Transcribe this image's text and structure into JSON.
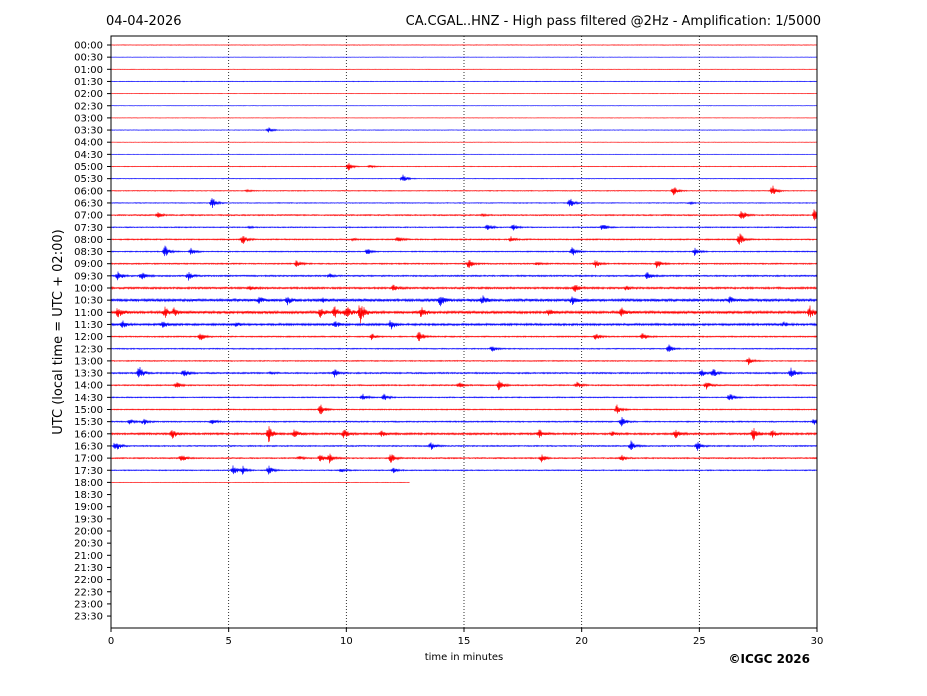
{
  "header": {
    "date": "04-04-2026",
    "title": "CA.CGAL..HNZ - High pass filtered @2Hz - Amplification: 1/5000"
  },
  "copyright": "©ICGC 2026",
  "colors": {
    "red": "#ff0000",
    "blue": "#0000ff",
    "grid": "#000000",
    "background": "#ffffff"
  },
  "chart_data": {
    "type": "line",
    "title": "CA.CGAL..HNZ - High pass filtered @2Hz - Amplification: 1/5000",
    "xlabel": "time in minutes",
    "ylabel": "UTC (local time = UTC + 02:00)",
    "xlim": [
      0,
      30
    ],
    "x_ticks": [
      "0",
      "5",
      "10",
      "15",
      "20",
      "25",
      "30"
    ],
    "y_ticks": [
      "00:00",
      "00:30",
      "01:00",
      "01:30",
      "02:00",
      "02:30",
      "03:00",
      "03:30",
      "04:00",
      "04:30",
      "05:00",
      "05:30",
      "06:00",
      "06:30",
      "07:00",
      "07:30",
      "08:00",
      "08:30",
      "09:00",
      "09:30",
      "10:00",
      "10:30",
      "11:00",
      "11:30",
      "12:00",
      "12:30",
      "13:00",
      "13:30",
      "14:00",
      "14:30",
      "15:00",
      "15:30",
      "16:00",
      "16:30",
      "17:00",
      "17:30",
      "18:00",
      "18:30",
      "19:00",
      "19:30",
      "20:00",
      "20:30",
      "21:00",
      "21:30",
      "22:00",
      "22:30",
      "23:00",
      "23:30"
    ],
    "vertical_gridlines_at": [
      5,
      10,
      15,
      20,
      25
    ],
    "trace_colors_alternate": [
      "red",
      "blue"
    ],
    "last_trace_end_minutes": 12.7,
    "noise_level": {
      "00:00": 0.3,
      "00:30": 0.2,
      "01:00": 0.2,
      "01:30": 0.3,
      "02:00": 0.2,
      "02:30": 0.2,
      "03:00": 0.2,
      "03:30": 0.3,
      "04:00": 0.2,
      "04:30": 0.2,
      "05:00": 0.3,
      "05:30": 0.3,
      "06:00": 0.4,
      "06:30": 0.4,
      "07:00": 0.6,
      "07:30": 0.5,
      "08:00": 0.6,
      "08:30": 0.5,
      "09:00": 0.6,
      "09:30": 0.7,
      "10:00": 0.9,
      "10:30": 1.2,
      "11:00": 1.2,
      "11:30": 1.0,
      "12:00": 0.6,
      "12:30": 0.5,
      "13:00": 0.5,
      "13:30": 0.7,
      "14:00": 0.6,
      "14:30": 0.5,
      "15:00": 0.5,
      "15:30": 0.6,
      "16:00": 0.9,
      "16:30": 0.6,
      "17:00": 0.6,
      "17:30": 0.5,
      "18:00": 0.2
    },
    "events": [
      {
        "row": "03:30",
        "t": 6.7,
        "amp": 3
      },
      {
        "row": "05:00",
        "t": 10.1,
        "amp": 4
      },
      {
        "row": "05:00",
        "t": 11,
        "amp": 1.5
      },
      {
        "row": "05:30",
        "t": 12.4,
        "amp": 5
      },
      {
        "row": "06:00",
        "t": 5.8,
        "amp": 1
      },
      {
        "row": "06:00",
        "t": 23.9,
        "amp": 5
      },
      {
        "row": "06:00",
        "t": 28.1,
        "amp": 6
      },
      {
        "row": "06:30",
        "t": 4.3,
        "amp": 6
      },
      {
        "row": "06:30",
        "t": 19.5,
        "amp": 5
      },
      {
        "row": "06:30",
        "t": 24.6,
        "amp": 1
      },
      {
        "row": "07:00",
        "t": 2,
        "amp": 3
      },
      {
        "row": "07:00",
        "t": 15.8,
        "amp": 1
      },
      {
        "row": "07:00",
        "t": 26.8,
        "amp": 6
      },
      {
        "row": "07:00",
        "t": 29.9,
        "amp": 7
      },
      {
        "row": "07:30",
        "t": 5.9,
        "amp": 1
      },
      {
        "row": "07:30",
        "t": 16,
        "amp": 4
      },
      {
        "row": "07:30",
        "t": 17.1,
        "amp": 3
      },
      {
        "row": "07:30",
        "t": 20.9,
        "amp": 4
      },
      {
        "row": "08:00",
        "t": 5.6,
        "amp": 5
      },
      {
        "row": "08:00",
        "t": 10.3,
        "amp": 1
      },
      {
        "row": "08:00",
        "t": 12.2,
        "amp": 3
      },
      {
        "row": "08:00",
        "t": 17,
        "amp": 3
      },
      {
        "row": "08:00",
        "t": 26.7,
        "amp": 7
      },
      {
        "row": "08:30",
        "t": 2.3,
        "amp": 6
      },
      {
        "row": "08:30",
        "t": 3.4,
        "amp": 4
      },
      {
        "row": "08:30",
        "t": 10.9,
        "amp": 3
      },
      {
        "row": "08:30",
        "t": 19.6,
        "amp": 5
      },
      {
        "row": "08:30",
        "t": 24.8,
        "amp": 4
      },
      {
        "row": "09:00",
        "t": 7.9,
        "amp": 4
      },
      {
        "row": "09:00",
        "t": 15.2,
        "amp": 5
      },
      {
        "row": "09:00",
        "t": 18.1,
        "amp": 2
      },
      {
        "row": "09:00",
        "t": 20.6,
        "amp": 4
      },
      {
        "row": "09:00",
        "t": 23.2,
        "amp": 5
      },
      {
        "row": "09:30",
        "t": 0.3,
        "amp": 5
      },
      {
        "row": "09:30",
        "t": 1.3,
        "amp": 4
      },
      {
        "row": "09:30",
        "t": 3.3,
        "amp": 5
      },
      {
        "row": "09:30",
        "t": 9.3,
        "amp": 2
      },
      {
        "row": "09:30",
        "t": 22.8,
        "amp": 4
      },
      {
        "row": "10:00",
        "t": 5.9,
        "amp": 3
      },
      {
        "row": "10:00",
        "t": 12,
        "amp": 3
      },
      {
        "row": "10:00",
        "t": 19.7,
        "amp": 4
      },
      {
        "row": "10:00",
        "t": 21.9,
        "amp": 2
      },
      {
        "row": "10:30",
        "t": 6.3,
        "amp": 3
      },
      {
        "row": "10:30",
        "t": 7.5,
        "amp": 4
      },
      {
        "row": "10:30",
        "t": 9,
        "amp": 2
      },
      {
        "row": "10:30",
        "t": 14,
        "amp": 6
      },
      {
        "row": "10:30",
        "t": 15.8,
        "amp": 4
      },
      {
        "row": "10:30",
        "t": 19.6,
        "amp": 4
      },
      {
        "row": "10:30",
        "t": 26.3,
        "amp": 3
      },
      {
        "row": "11:00",
        "t": 0.3,
        "amp": 5
      },
      {
        "row": "11:00",
        "t": 2.3,
        "amp": 5
      },
      {
        "row": "11:00",
        "t": 2.7,
        "amp": 4
      },
      {
        "row": "11:00",
        "t": 8.9,
        "amp": 5
      },
      {
        "row": "11:00",
        "t": 9.5,
        "amp": 6
      },
      {
        "row": "11:00",
        "t": 10,
        "amp": 7
      },
      {
        "row": "11:00",
        "t": 10.6,
        "amp": 12
      },
      {
        "row": "11:00",
        "t": 13.2,
        "amp": 6
      },
      {
        "row": "11:00",
        "t": 18.6,
        "amp": 3
      },
      {
        "row": "11:00",
        "t": 21.7,
        "amp": 5
      },
      {
        "row": "11:00",
        "t": 29.7,
        "amp": 6
      },
      {
        "row": "11:30",
        "t": 0.5,
        "amp": 4
      },
      {
        "row": "11:30",
        "t": 2.2,
        "amp": 4
      },
      {
        "row": "11:30",
        "t": 5.3,
        "amp": 2
      },
      {
        "row": "11:30",
        "t": 9.5,
        "amp": 4
      },
      {
        "row": "11:30",
        "t": 11.9,
        "amp": 5
      },
      {
        "row": "11:30",
        "t": 28.6,
        "amp": 2
      },
      {
        "row": "12:00",
        "t": 3.8,
        "amp": 4
      },
      {
        "row": "12:00",
        "t": 11.1,
        "amp": 4
      },
      {
        "row": "12:00",
        "t": 13.1,
        "amp": 6
      },
      {
        "row": "12:00",
        "t": 20.6,
        "amp": 4
      },
      {
        "row": "12:00",
        "t": 22.6,
        "amp": 4
      },
      {
        "row": "12:30",
        "t": 16.2,
        "amp": 3
      },
      {
        "row": "12:30",
        "t": 23.7,
        "amp": 4
      },
      {
        "row": "13:00",
        "t": 27.1,
        "amp": 4
      },
      {
        "row": "13:30",
        "t": 1.2,
        "amp": 7
      },
      {
        "row": "13:30",
        "t": 3.1,
        "amp": 5
      },
      {
        "row": "13:30",
        "t": 6.8,
        "amp": 1
      },
      {
        "row": "13:30",
        "t": 9.5,
        "amp": 4
      },
      {
        "row": "13:30",
        "t": 25.1,
        "amp": 4
      },
      {
        "row": "13:30",
        "t": 25.6,
        "amp": 4
      },
      {
        "row": "13:30",
        "t": 28.9,
        "amp": 6
      },
      {
        "row": "14:00",
        "t": 2.8,
        "amp": 3
      },
      {
        "row": "14:00",
        "t": 14.8,
        "amp": 3
      },
      {
        "row": "14:00",
        "t": 16.5,
        "amp": 6
      },
      {
        "row": "14:00",
        "t": 19.8,
        "amp": 3
      },
      {
        "row": "14:00",
        "t": 25.3,
        "amp": 4
      },
      {
        "row": "14:30",
        "t": 10.7,
        "amp": 4
      },
      {
        "row": "14:30",
        "t": 11.6,
        "amp": 4
      },
      {
        "row": "14:30",
        "t": 26.3,
        "amp": 5
      },
      {
        "row": "15:00",
        "t": 8.9,
        "amp": 6
      },
      {
        "row": "15:00",
        "t": 21.5,
        "amp": 5
      },
      {
        "row": "15:30",
        "t": 0.8,
        "amp": 3
      },
      {
        "row": "15:30",
        "t": 1.4,
        "amp": 3
      },
      {
        "row": "15:30",
        "t": 4.3,
        "amp": 3
      },
      {
        "row": "15:30",
        "t": 21.7,
        "amp": 5
      },
      {
        "row": "15:30",
        "t": 29.9,
        "amp": 4
      },
      {
        "row": "16:00",
        "t": 2.6,
        "amp": 6
      },
      {
        "row": "16:00",
        "t": 6.7,
        "amp": 9
      },
      {
        "row": "16:00",
        "t": 7.8,
        "amp": 5
      },
      {
        "row": "16:00",
        "t": 9.9,
        "amp": 5
      },
      {
        "row": "16:00",
        "t": 11.5,
        "amp": 3
      },
      {
        "row": "16:00",
        "t": 18.2,
        "amp": 4
      },
      {
        "row": "16:00",
        "t": 21.3,
        "amp": 2
      },
      {
        "row": "16:00",
        "t": 24,
        "amp": 4
      },
      {
        "row": "16:00",
        "t": 27.3,
        "amp": 7
      },
      {
        "row": "16:00",
        "t": 28.1,
        "amp": 4
      },
      {
        "row": "16:30",
        "t": 0.2,
        "amp": 6
      },
      {
        "row": "16:30",
        "t": 13.6,
        "amp": 4
      },
      {
        "row": "16:30",
        "t": 22.1,
        "amp": 5
      },
      {
        "row": "16:30",
        "t": 24.9,
        "amp": 5
      },
      {
        "row": "17:00",
        "t": 3,
        "amp": 4
      },
      {
        "row": "17:00",
        "t": 8,
        "amp": 2
      },
      {
        "row": "17:00",
        "t": 8.9,
        "amp": 4
      },
      {
        "row": "17:00",
        "t": 9.3,
        "amp": 5
      },
      {
        "row": "17:00",
        "t": 11.9,
        "amp": 5
      },
      {
        "row": "17:00",
        "t": 18.3,
        "amp": 4
      },
      {
        "row": "17:00",
        "t": 21.7,
        "amp": 3
      },
      {
        "row": "17:30",
        "t": 5.2,
        "amp": 6
      },
      {
        "row": "17:30",
        "t": 5.6,
        "amp": 4
      },
      {
        "row": "17:30",
        "t": 6.7,
        "amp": 5
      },
      {
        "row": "17:30",
        "t": 9.8,
        "amp": 2
      },
      {
        "row": "17:30",
        "t": 12,
        "amp": 3
      }
    ]
  }
}
